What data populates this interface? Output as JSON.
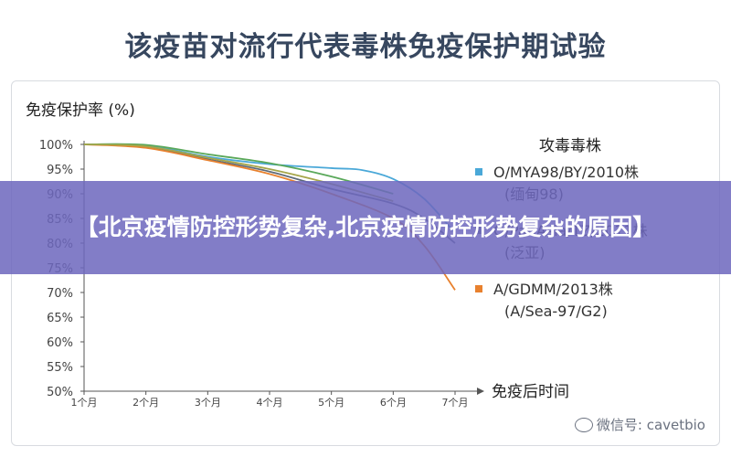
{
  "page_title": "该疫苗对流行代表毒株免疫保护期试验",
  "banner_text": "【北京疫情防控形势复杂,北京疫情防控形势复杂的原因】",
  "watermark": "微信号: cavetbio",
  "colors": {
    "blue": "#4aa8d8",
    "green": "#5aa85a",
    "olive": "#a6a64a",
    "gray": "#5e6a78",
    "orange": "#e8812e",
    "title": "#37475f"
  },
  "chart_data": {
    "type": "line",
    "title": "该疫苗对流行代表毒株免疫保护期试验",
    "ylabel": "免疫保护率 (%)",
    "xlabel": "免疫后时间",
    "categories": [
      "1个月",
      "2个月",
      "3个月",
      "4个月",
      "5个月",
      "6个月",
      "7个月"
    ],
    "yticks": [
      "100%",
      "95%",
      "90%",
      "85%",
      "80%",
      "75%",
      "70%",
      "65%",
      "60%",
      "55%",
      "50%"
    ],
    "ylim": [
      50,
      100
    ],
    "legend_title": "攻毒毒株",
    "legend_position": "right",
    "series": [
      {
        "name": "O/MYA98/BY/2010株",
        "name2": "(缅甸98)",
        "color": "#4aa8d8",
        "x": [
          1,
          2,
          3,
          4,
          5,
          5.5,
          6,
          6.5,
          7
        ],
        "values": [
          100,
          99.8,
          97.5,
          96.0,
          95.2,
          94.8,
          93.0,
          89.0,
          82.0
        ]
      },
      {
        "name": "O/PanAsia/TZ/2011株",
        "name2": "(泛亚)",
        "color": "#5e6a78",
        "x": [
          1,
          2,
          3,
          4,
          5,
          6,
          6.5,
          7
        ],
        "values": [
          100,
          99.5,
          97.0,
          94.5,
          91.0,
          88.0,
          85.0,
          80.0
        ]
      },
      {
        "name": "A/GDMM/2013株",
        "name2": "(A/Sea-97/G2)",
        "color": "#e8812e",
        "x": [
          1,
          2,
          3,
          4,
          5,
          6,
          6.5,
          7
        ],
        "values": [
          100,
          99.3,
          96.8,
          94.0,
          90.0,
          85.0,
          79.5,
          70.5
        ]
      },
      {
        "name": "",
        "name2": "",
        "color": "#5aa85a",
        "x": [
          1,
          2,
          3,
          4,
          5,
          6
        ],
        "values": [
          100,
          99.9,
          98.0,
          96.2,
          93.5,
          90.0
        ]
      },
      {
        "name": "",
        "name2": "",
        "color": "#a6a64a",
        "x": [
          1,
          2,
          3,
          4,
          5,
          6
        ],
        "values": [
          100,
          99.6,
          97.3,
          95.0,
          92.0,
          88.5
        ]
      }
    ]
  }
}
